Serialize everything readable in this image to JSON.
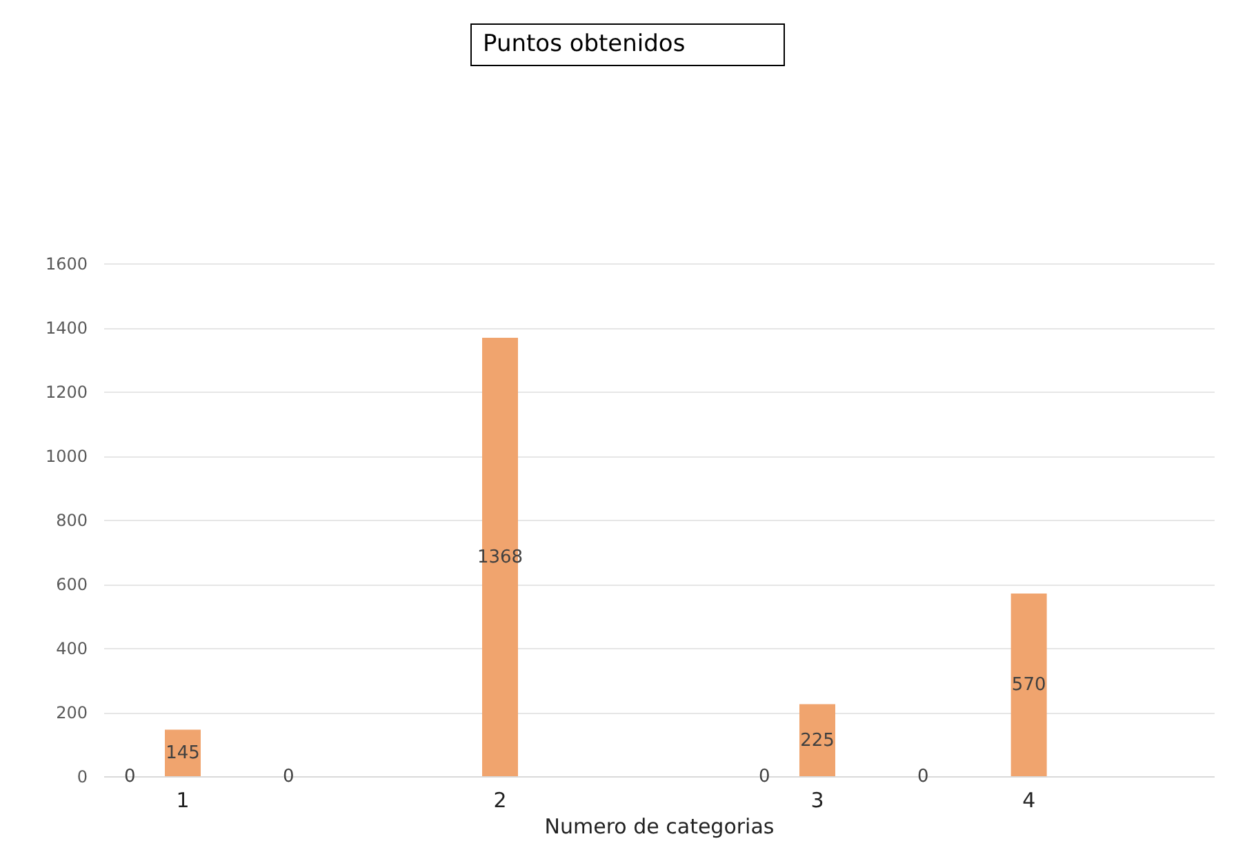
{
  "chart_data": {
    "type": "bar",
    "title": "Puntos obtenidos",
    "xlabel": "Numero de categorias",
    "categories": [
      null,
      "1",
      null,
      null,
      null,
      null,
      null,
      "2",
      null,
      null,
      null,
      null,
      null,
      "3",
      null,
      null,
      null,
      "4",
      null,
      null,
      null
    ],
    "values": [
      0,
      145,
      null,
      0,
      null,
      null,
      null,
      1368,
      null,
      null,
      null,
      null,
      0,
      225,
      null,
      0,
      null,
      570,
      null,
      null,
      null
    ],
    "color": "#f0a46e",
    "ylim": [
      0,
      1600
    ],
    "yticks": [
      0,
      200,
      400,
      600,
      800,
      1000,
      1200,
      1400,
      1600
    ],
    "grid": "y",
    "data_labels": true
  }
}
